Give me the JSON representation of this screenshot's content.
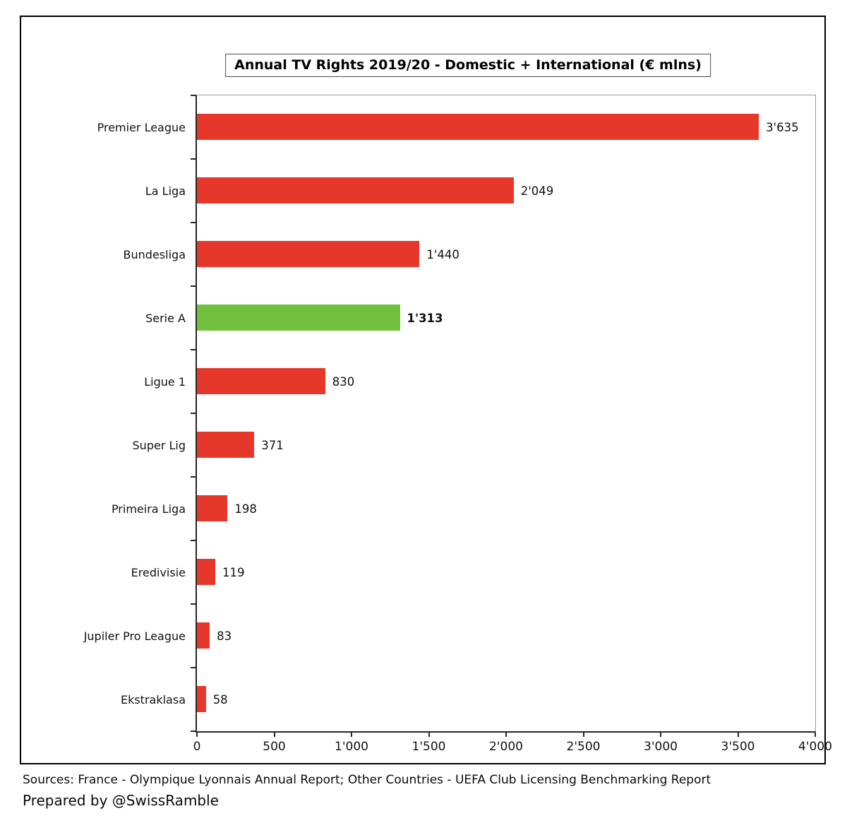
{
  "title": "Annual TV Rights 2019/20 - Domestic + International (€ mlns)",
  "chart_data": {
    "type": "bar",
    "orientation": "horizontal",
    "title": "Annual TV Rights 2019/20 - Domestic + International (€ mlns)",
    "categories": [
      "Premier League",
      "La Liga",
      "Bundesliga",
      "Serie A",
      "Ligue 1",
      "Super Lig",
      "Primeira Liga",
      "Eredivisie",
      "Jupiler Pro League",
      "Ekstraklasa"
    ],
    "values": [
      3635,
      2049,
      1440,
      1313,
      830,
      371,
      198,
      119,
      83,
      58
    ],
    "value_labels": [
      "3'635",
      "2'049",
      "1'440",
      "1'313",
      "830",
      "371",
      "198",
      "119",
      "83",
      "58"
    ],
    "highlight_index": 3,
    "bar_color": "#e6382a",
    "highlight_color": "#72c13e",
    "xlabel": "",
    "ylabel": "",
    "xlim": [
      0,
      4000
    ],
    "x_ticks": [
      0,
      500,
      1000,
      1500,
      2000,
      2500,
      3000,
      3500,
      4000
    ],
    "x_tick_labels": [
      "0",
      "500",
      "1'000",
      "1'500",
      "2'000",
      "2'500",
      "3'000",
      "3'500",
      "4'000"
    ],
    "grid": false,
    "legend": false
  },
  "footer": {
    "sources": "Sources: France - Olympique Lyonnais Annual Report; Other Countries - UEFA Club Licensing Benchmarking Report",
    "prepared_by": "Prepared by @SwissRamble"
  }
}
